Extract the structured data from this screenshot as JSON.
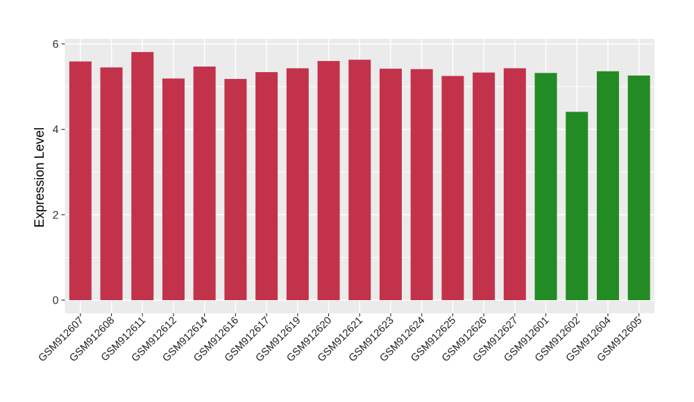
{
  "chart_data": {
    "type": "bar",
    "title": "",
    "xlabel": "",
    "ylabel": "Expression Level",
    "categories": [
      "GSM912607",
      "GSM912608",
      "GSM912611",
      "GSM912612",
      "GSM912614",
      "GSM912616",
      "GSM912617",
      "GSM912619",
      "GSM912620",
      "GSM912621",
      "GSM912623",
      "GSM912624",
      "GSM912625",
      "GSM912626",
      "GSM912627",
      "GSM912601",
      "GSM912602",
      "GSM912604",
      "GSM912605"
    ],
    "values": [
      5.59,
      5.45,
      5.81,
      5.19,
      5.47,
      5.18,
      5.34,
      5.43,
      5.6,
      5.63,
      5.42,
      5.41,
      5.25,
      5.33,
      5.43,
      5.32,
      4.41,
      5.36,
      5.26
    ],
    "bar_groups": [
      "red",
      "red",
      "red",
      "red",
      "red",
      "red",
      "red",
      "red",
      "red",
      "red",
      "red",
      "red",
      "red",
      "red",
      "red",
      "green",
      "green",
      "green",
      "green"
    ],
    "group_colors": {
      "red": "#C3324B",
      "green": "#238B23"
    },
    "yticks": [
      0,
      2,
      4,
      6
    ],
    "ytick_labels": [
      "0",
      "2",
      "4",
      "6"
    ],
    "yticks_minor": [
      1,
      3,
      5
    ],
    "ylim": [
      0,
      6.12
    ],
    "x_label_angle": 45,
    "legend": "none",
    "grid": "on",
    "panel_background": "#EBEBEB",
    "grid_color": "#FFFFFF",
    "tick_mark_color": "#333333"
  }
}
